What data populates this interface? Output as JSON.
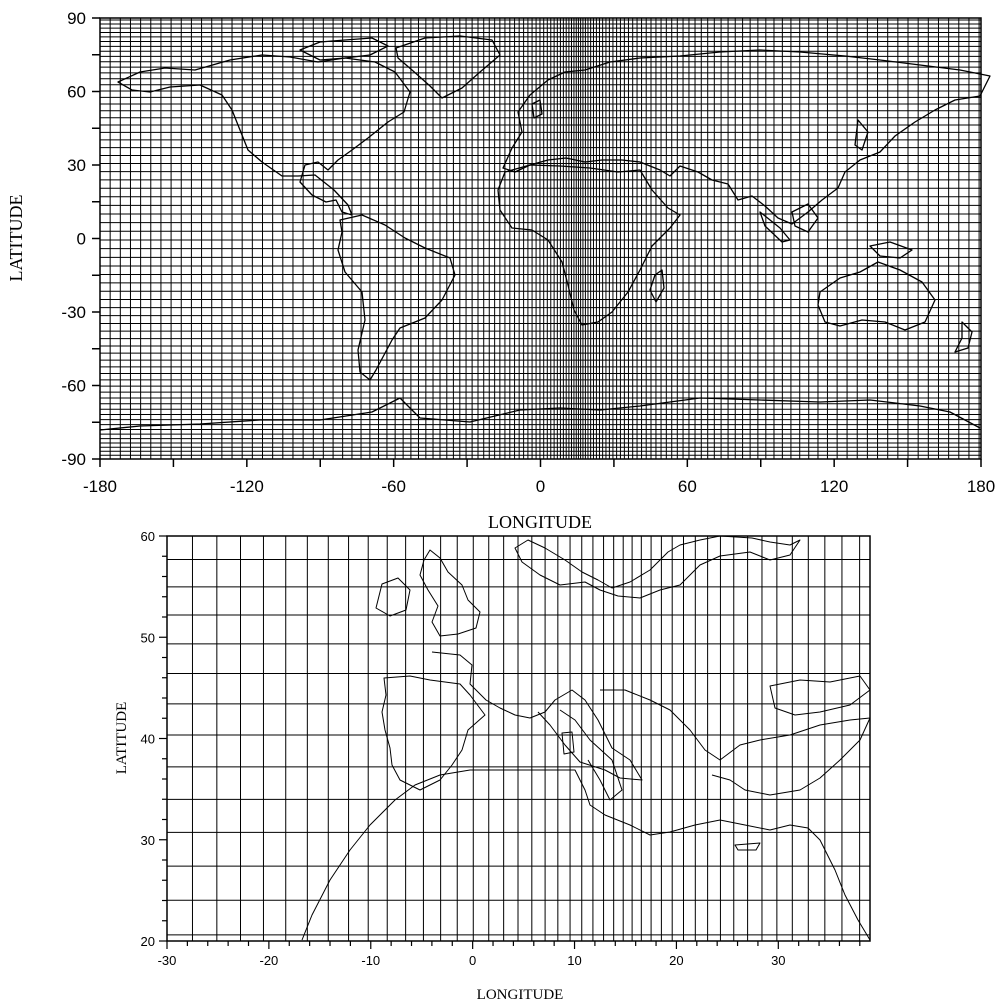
{
  "maps": [
    {
      "id": "global",
      "xlabel": "LONGITUDE",
      "ylabel": "LATITUDE",
      "xlim": [
        -180,
        180
      ],
      "ylim": [
        -90,
        90
      ],
      "xticks": [
        -180,
        -120,
        -60,
        0,
        60,
        120,
        180
      ],
      "yticks": [
        -90,
        -60,
        -30,
        0,
        30,
        60,
        90
      ],
      "grid": "stretched ocean-model grid, zonal refinement centred near 15E, meridional refinement toward the poles"
    },
    {
      "id": "regional",
      "xlabel": "LONGITUDE",
      "ylabel": "LATITUDE",
      "xlim": [
        -30,
        39
      ],
      "ylim": [
        20,
        60
      ],
      "xticks": [
        -30,
        -20,
        -10,
        0,
        10,
        20,
        30
      ],
      "yticks": [
        20,
        30,
        40,
        50,
        60
      ],
      "grid": "zoom of the same grid over Europe, North Africa and the Mediterranean"
    }
  ],
  "colors": {
    "line": "#000000",
    "background": "#ffffff"
  }
}
